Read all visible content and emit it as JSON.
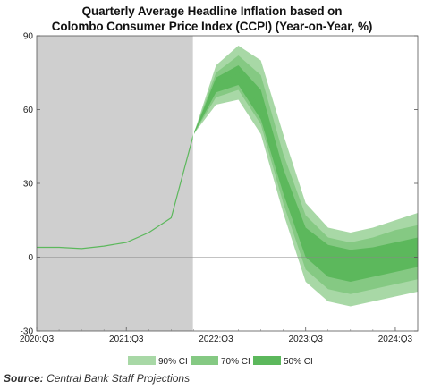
{
  "chart_data": {
    "type": "line",
    "title_lines": [
      "Quarterly Average Headline Inflation based on",
      "Colombo Consumer Price Index (CCPI) (Year-on-Year, %)"
    ],
    "xlabel": "",
    "ylabel": "",
    "ylim": [
      -30,
      90
    ],
    "yticks": [
      -30,
      0,
      30,
      60,
      90
    ],
    "xlim": [
      "2020:Q3",
      "2024:Q4"
    ],
    "xticks": [
      "2020:Q3",
      "2021:Q3",
      "2022:Q3",
      "2023:Q3",
      "2024:Q3"
    ],
    "x": [
      "2020:Q3",
      "2020:Q4",
      "2021:Q1",
      "2021:Q2",
      "2021:Q3",
      "2021:Q4",
      "2022:Q1",
      "2022:Q2",
      "2022:Q3",
      "2022:Q4",
      "2023:Q1",
      "2023:Q2",
      "2023:Q3",
      "2023:Q4",
      "2024:Q1",
      "2024:Q2",
      "2024:Q3",
      "2024:Q4"
    ],
    "shaded_region": {
      "from": "2020:Q3",
      "to": "2022:Q2",
      "color": "#cfcfcf"
    },
    "series": [
      {
        "name": "",
        "color": "#5cb85c",
        "values": [
          4,
          4,
          3.5,
          4.5,
          6,
          10,
          16,
          50,
          70,
          75,
          60,
          30,
          10,
          3,
          2,
          3,
          4,
          5
        ]
      }
    ],
    "fan_chart": {
      "start": "2022:Q2",
      "bands": [
        {
          "name": "90% CI",
          "color": "#a8d8a6",
          "lower": [
            50,
            62,
            64,
            50,
            18,
            -10,
            -18,
            -20,
            -18,
            -16,
            -14,
            -12
          ],
          "upper": [
            50,
            78,
            86,
            80,
            50,
            22,
            12,
            10,
            12,
            15,
            18,
            21
          ]
        },
        {
          "name": "70% CI",
          "color": "#85c983",
          "lower": [
            50,
            65,
            68,
            54,
            22,
            -5,
            -13,
            -15,
            -13,
            -11,
            -9,
            -7
          ],
          "upper": [
            50,
            75,
            82,
            74,
            42,
            17,
            8,
            6,
            8,
            11,
            13,
            16
          ]
        },
        {
          "name": "50% CI",
          "color": "#5cb85c",
          "lower": [
            50,
            67,
            70,
            56,
            26,
            0,
            -8,
            -10,
            -8,
            -6,
            -4,
            -2
          ],
          "upper": [
            50,
            73,
            78,
            68,
            36,
            12,
            5,
            3,
            4,
            6,
            8,
            10
          ]
        }
      ]
    },
    "legend": {
      "placement": "bottom",
      "entries": [
        "90% CI",
        "70% CI",
        "50% CI"
      ]
    },
    "grid": false,
    "source_label": "Source:",
    "source_text": "Central Bank Staff Projections"
  }
}
